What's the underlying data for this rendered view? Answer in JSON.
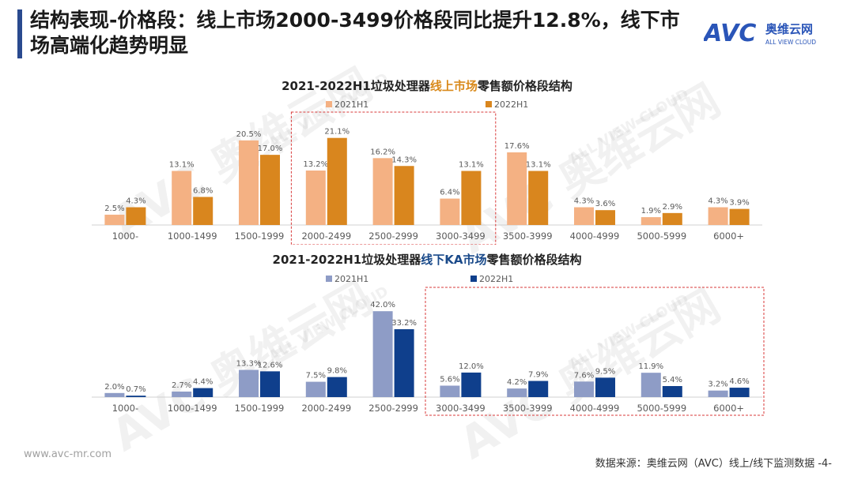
{
  "header": {
    "title": "结构表现-价格段：线上市场2000-3499价格段同比提升12.8%，线下市场高端化趋势明显"
  },
  "logo": {
    "text": "AVC",
    "cn": "奥维云网",
    "en": "ALL VIEW CLOUD"
  },
  "watermark": {
    "text": "AVC 奥维云网",
    "sub": "ALL VIEW CLOUD"
  },
  "footer": {
    "website": "www.avc-mr.com",
    "source": "数据来源：奥维云网（AVC）线上/线下监测数据",
    "page": "-4-"
  },
  "chart1_title": {
    "pre": "2021-2022H1垃圾处理器",
    "hl": "线上市场",
    "post": "零售额价格段结构"
  },
  "chart2_title": {
    "pre": "2021-2022H1垃圾处理器",
    "hl": "线下KA市场",
    "post": "零售额价格段结构"
  },
  "chart_data": [
    {
      "type": "bar",
      "title": "2021-2022H1垃圾处理器线上市场零售额价格段结构",
      "categories": [
        "1000-",
        "1000-1499",
        "1500-1999",
        "2000-2499",
        "2500-2999",
        "3000-3499",
        "3500-3999",
        "4000-4999",
        "5000-5999",
        "6000+"
      ],
      "series": [
        {
          "name": "2021H1",
          "color": "#f4b183",
          "values": [
            2.5,
            13.1,
            20.5,
            13.2,
            16.2,
            6.4,
            17.6,
            4.3,
            1.9,
            4.3
          ]
        },
        {
          "name": "2022H1",
          "color": "#d9861e",
          "values": [
            4.3,
            6.8,
            17.0,
            21.1,
            14.3,
            13.1,
            13.1,
            3.6,
            2.9,
            3.9
          ]
        }
      ],
      "labels": [
        [
          "2.5%",
          "13.1%",
          "20.5%",
          "13.2%",
          "16.2%",
          "6.4%",
          "17.6%",
          "4.3%",
          "1.9%",
          "4.3%"
        ],
        [
          "4.3%",
          "6.8%",
          "17.0%",
          "21.1%",
          "14.3%",
          "13.1%",
          "13.1%",
          "3.6%",
          "2.9%",
          "3.9%"
        ]
      ],
      "highlight": [
        "2000-2499",
        "3000-3499"
      ],
      "ylim": [
        0,
        22
      ],
      "legend": "top-center"
    },
    {
      "type": "bar",
      "title": "2021-2022H1垃圾处理器线下KA市场零售额价格段结构",
      "categories": [
        "1000-",
        "1000-1499",
        "1500-1999",
        "2000-2499",
        "2500-2999",
        "3000-3499",
        "3500-3999",
        "4000-4999",
        "5000-5999",
        "6000+"
      ],
      "series": [
        {
          "name": "2021H1",
          "color": "#8e9cc6",
          "values": [
            2.0,
            2.7,
            13.3,
            7.5,
            42.0,
            5.6,
            4.2,
            7.6,
            11.9,
            3.2
          ]
        },
        {
          "name": "2022H1",
          "color": "#0f3f8c",
          "values": [
            0.7,
            4.4,
            12.6,
            9.8,
            33.2,
            12.0,
            7.9,
            9.5,
            5.4,
            4.6
          ]
        }
      ],
      "labels": [
        [
          "2.0%",
          "2.7%",
          "13.3%",
          "7.5%",
          "42.0%",
          "5.6%",
          "4.2%",
          "7.6%",
          "11.9%",
          "3.2%"
        ],
        [
          "0.7%",
          "4.4%",
          "12.6%",
          "9.8%",
          "33.2%",
          "12.0%",
          "7.9%",
          "9.5%",
          "5.4%",
          "4.6%"
        ]
      ],
      "highlight": [
        "3000-3499",
        "6000+"
      ],
      "ylim": [
        0,
        44
      ],
      "legend": "top-center"
    }
  ]
}
